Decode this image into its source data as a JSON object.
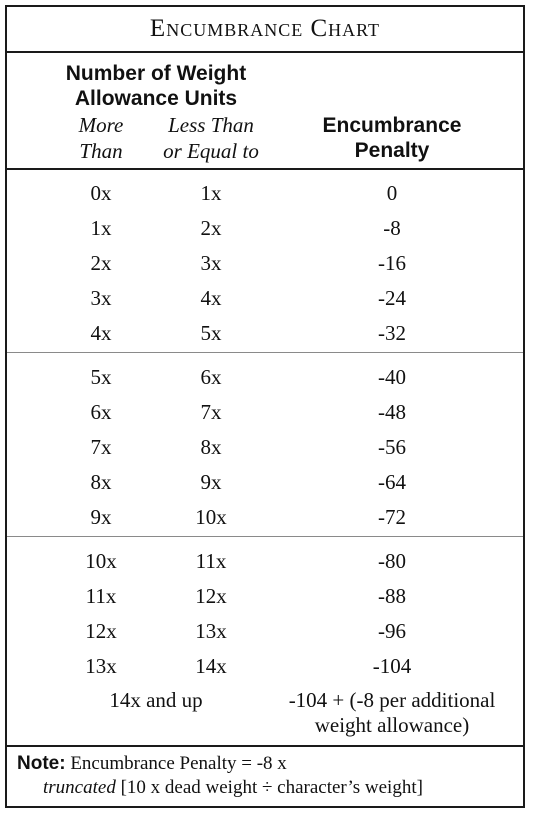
{
  "title": "Encumbrance Chart",
  "header": {
    "group_line1": "Number of Weight",
    "group_line2": "Allowance Units",
    "col1_line1": "More",
    "col1_line2": "Than",
    "col2_line1": "Less Than",
    "col2_line2": "or Equal to",
    "col3_line1": "Encumbrance",
    "col3_line2": "Penalty"
  },
  "groups": [
    [
      {
        "more_than": "0x",
        "less_equal": "1x",
        "penalty": "0"
      },
      {
        "more_than": "1x",
        "less_equal": "2x",
        "penalty": "-8"
      },
      {
        "more_than": "2x",
        "less_equal": "3x",
        "penalty": "-16"
      },
      {
        "more_than": "3x",
        "less_equal": "4x",
        "penalty": "-24"
      },
      {
        "more_than": "4x",
        "less_equal": "5x",
        "penalty": "-32"
      }
    ],
    [
      {
        "more_than": "5x",
        "less_equal": "6x",
        "penalty": "-40"
      },
      {
        "more_than": "6x",
        "less_equal": "7x",
        "penalty": "-48"
      },
      {
        "more_than": "7x",
        "less_equal": "8x",
        "penalty": "-56"
      },
      {
        "more_than": "8x",
        "less_equal": "9x",
        "penalty": "-64"
      },
      {
        "more_than": "9x",
        "less_equal": "10x",
        "penalty": "-72"
      }
    ],
    [
      {
        "more_than": "10x",
        "less_equal": "11x",
        "penalty": "-80"
      },
      {
        "more_than": "11x",
        "less_equal": "12x",
        "penalty": "-88"
      },
      {
        "more_than": "12x",
        "less_equal": "13x",
        "penalty": "-96"
      },
      {
        "more_than": "13x",
        "less_equal": "14x",
        "penalty": "-104"
      }
    ]
  ],
  "final_row": {
    "range": "14x and up",
    "penalty_line1": "-104 + (-8 per additional",
    "penalty_line2": "weight allowance)"
  },
  "note": {
    "label": "Note:",
    "line1": "Encumbrance Penalty =  -8  x",
    "line2_italic": "truncated",
    "line2_rest": "[10 x dead weight ÷ character’s weight]"
  }
}
